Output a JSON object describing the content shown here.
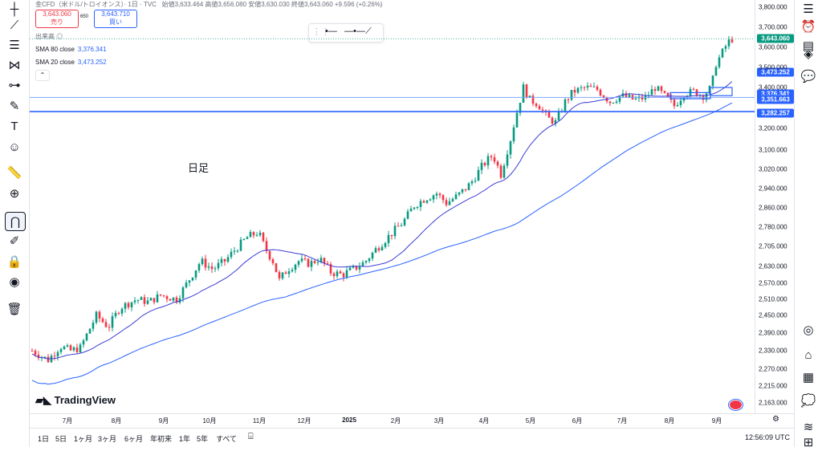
{
  "header": {
    "symbol_line": "金CFD（米ドル/トロイオンス）· 1日 · TVC",
    "ohlc": "始値3,633.464 高値3,656.080 安値3,630.030 終値3,643.060 +9.596 (+0.26%)"
  },
  "trade": {
    "sell_price": "3,643.060",
    "sell_label": "売り",
    "spread": "650",
    "buy_price": "3,643.710",
    "buy_label": "買い"
  },
  "legend": {
    "volume_label": "出来高",
    "sma80_label": "SMA 80 close",
    "sma80_value": "3,376.341",
    "sma20_label": "SMA 20 close",
    "sma20_value": "3,473.252"
  },
  "note": "日足",
  "logo": "TradingView",
  "price_axis": {
    "labels": [
      "3,800.000",
      "3,700.000",
      "3,600.000",
      "3,500.000",
      "3,400.000",
      "3,200.000",
      "3,100.000",
      "3,020.000",
      "2,940.000",
      "2,860.000",
      "2,780.000",
      "2,705.000",
      "2,630.000",
      "2,570.000",
      "2,510.000",
      "2,450.000",
      "2,390.000",
      "2,330.000",
      "2,270.000",
      "2,215.000",
      "2,163.000"
    ],
    "last_price": "3,643.060",
    "sma20_tag": "3,473.252",
    "sma80_tag": "3,376.341",
    "hline1_tag": "3,351.663",
    "hline2_tag": "3,282.257",
    "colors": {
      "last": "#089981",
      "sma": "#2962ff",
      "up": "#089981",
      "down": "#f23645"
    }
  },
  "time_axis": {
    "labels": [
      "7月",
      "8月",
      "9月",
      "10月",
      "11月",
      "12月",
      "2025",
      "2月",
      "3月",
      "4月",
      "5月",
      "6月",
      "7月",
      "8月",
      "9月"
    ]
  },
  "ranges": [
    "1日",
    "5日",
    "1ヶ月",
    "3ヶ月",
    "6ヶ月",
    "年初来",
    "1年",
    "5年",
    "すべて"
  ],
  "clock": "12:56:09 UTC",
  "left_tools": [
    "crosshair-icon",
    "trend-line-icon",
    "fib-icon",
    "pattern-icon",
    "projection-icon",
    "brush-icon",
    "text-icon",
    "emoji-icon",
    "ruler-icon",
    "zoom-in-icon",
    "magnet-icon",
    "lock-draw-icon",
    "lock-icon",
    "eye-icon",
    "trash-icon"
  ],
  "right_tools": [
    "watchlist-icon",
    "alert-icon",
    "datawindow-icon",
    "layers-icon",
    "chat-icon",
    "target-icon",
    "idea-icon",
    "calendar-icon",
    "bubble-icon",
    "broadcast-icon",
    "apps-icon"
  ],
  "chart_data": {
    "type": "candlestick",
    "series_up_color": "#089981",
    "series_down_color": "#f23645",
    "ylim": [
      2163,
      3800
    ],
    "x": [
      "2024-06",
      "2024-07",
      "2024-08",
      "2024-09",
      "2024-10",
      "2024-11",
      "2024-12",
      "2025-01",
      "2025-02",
      "2025-03",
      "2025-04",
      "2025-05",
      "2025-06",
      "2025-07",
      "2025-08",
      "2025-09"
    ],
    "close_approx": [
      2330,
      2390,
      2500,
      2600,
      2740,
      2650,
      2625,
      2800,
      2860,
      3120,
      3300,
      3300,
      3300,
      3330,
      3440,
      3643.06
    ],
    "sma20_last": 3473.252,
    "sma80_last": 3376.341,
    "horizontal_lines": [
      3351.663,
      3282.257
    ]
  }
}
